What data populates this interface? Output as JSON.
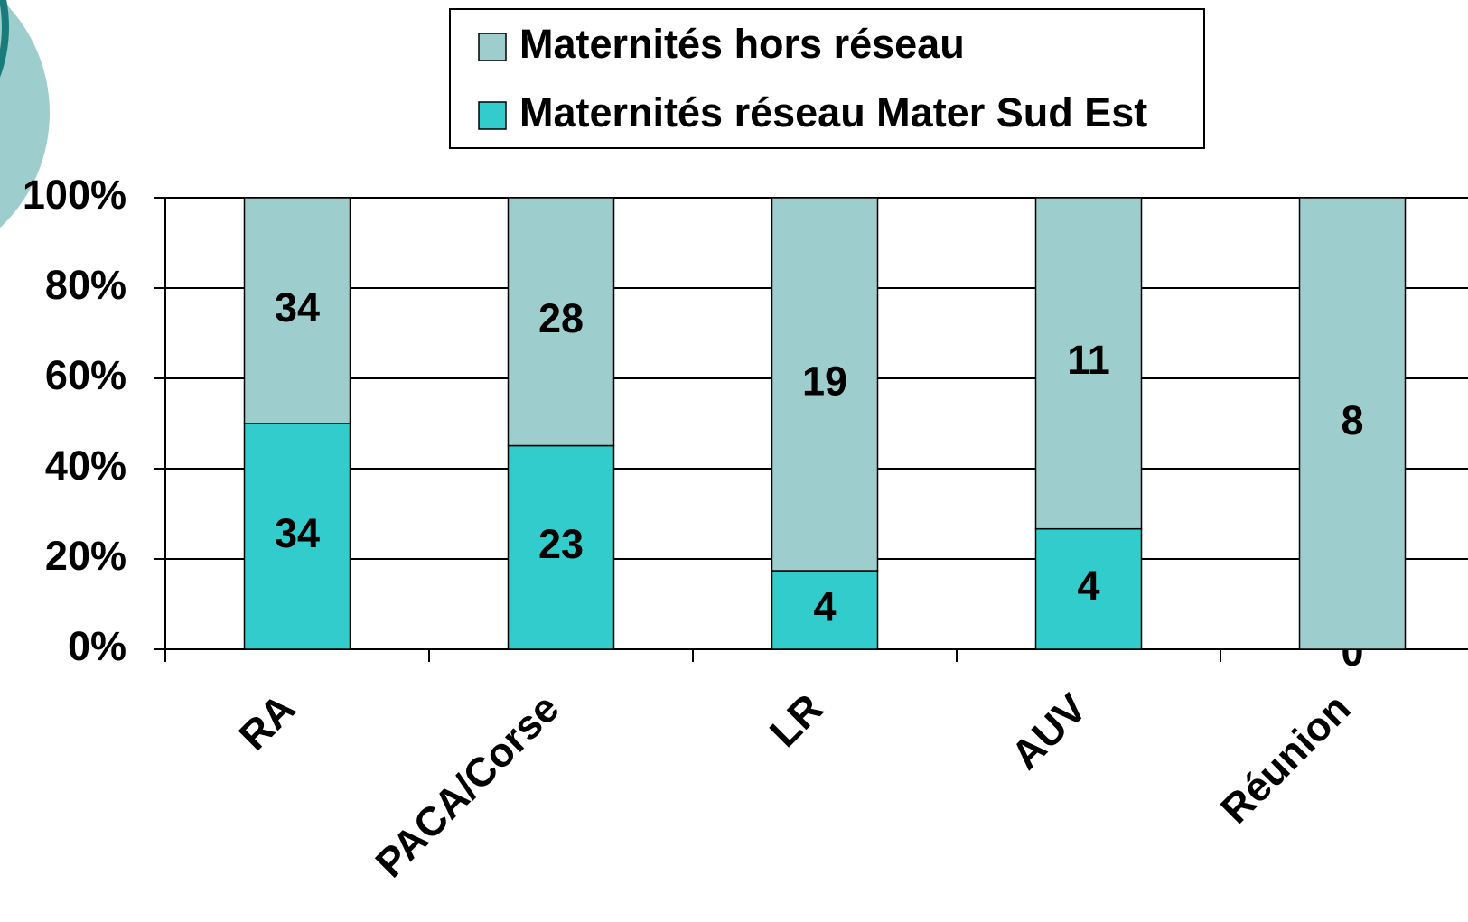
{
  "chart_data": {
    "type": "bar",
    "stacking": "percent",
    "categories": [
      "RA",
      "PACA/Corse",
      "LR",
      "AUV",
      "Réunion"
    ],
    "series": [
      {
        "name": "Maternités réseau Mater Sud Est",
        "color": "#33cccc",
        "values": [
          34,
          23,
          4,
          4,
          0
        ]
      },
      {
        "name": "Maternités hors réseau",
        "color": "#9dcdcc",
        "values": [
          34,
          28,
          19,
          11,
          8
        ]
      }
    ],
    "ylim": [
      0,
      100
    ],
    "yticks": [
      {
        "value": 0,
        "label": "0%"
      },
      {
        "value": 20,
        "label": "20%"
      },
      {
        "value": 40,
        "label": "40%"
      },
      {
        "value": 60,
        "label": "60%"
      },
      {
        "value": 80,
        "label": "80%"
      },
      {
        "value": 100,
        "label": "100%"
      }
    ],
    "grid": true,
    "legend": "top"
  }
}
